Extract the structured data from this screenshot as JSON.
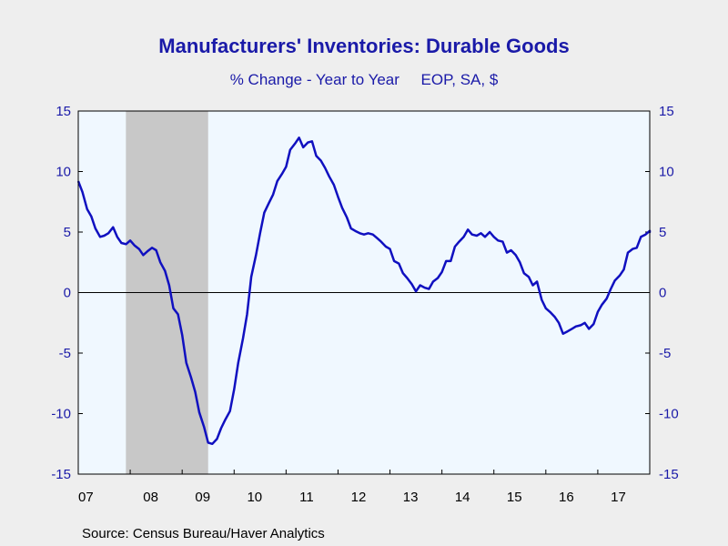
{
  "chart_data": {
    "type": "line",
    "title": "Manufacturers' Inventories: Durable Goods",
    "subtitle": "% Change - Year to Year     EOP, SA, $",
    "ylim": [
      -15,
      15
    ],
    "yticks": [
      15,
      10,
      5,
      0,
      -5,
      -10,
      -15
    ],
    "xlim": [
      2007.0,
      2018.0
    ],
    "x_tick_labels": [
      "07",
      "08",
      "09",
      "10",
      "11",
      "12",
      "13",
      "14",
      "15",
      "16",
      "17"
    ],
    "grid": false,
    "recession_band": [
      2007.917,
      2009.5
    ],
    "zero_line": true,
    "series": [
      {
        "color": "#1010c0",
        "points": [
          [
            2007.0,
            9.2
          ],
          [
            2007.08,
            8.3
          ],
          [
            2007.17,
            6.9
          ],
          [
            2007.25,
            6.3
          ],
          [
            2007.33,
            5.3
          ],
          [
            2007.42,
            4.6
          ],
          [
            2007.5,
            4.7
          ],
          [
            2007.58,
            4.9
          ],
          [
            2007.67,
            5.4
          ],
          [
            2007.75,
            4.6
          ],
          [
            2007.83,
            4.1
          ],
          [
            2007.92,
            4.0
          ],
          [
            2008.0,
            4.3
          ],
          [
            2008.08,
            3.9
          ],
          [
            2008.17,
            3.6
          ],
          [
            2008.25,
            3.1
          ],
          [
            2008.33,
            3.4
          ],
          [
            2008.42,
            3.7
          ],
          [
            2008.5,
            3.5
          ],
          [
            2008.58,
            2.5
          ],
          [
            2008.67,
            1.8
          ],
          [
            2008.75,
            0.6
          ],
          [
            2008.83,
            -1.3
          ],
          [
            2008.92,
            -1.8
          ],
          [
            2009.0,
            -3.5
          ],
          [
            2009.08,
            -5.8
          ],
          [
            2009.17,
            -7.0
          ],
          [
            2009.25,
            -8.2
          ],
          [
            2009.33,
            -9.9
          ],
          [
            2009.42,
            -11.1
          ],
          [
            2009.5,
            -12.4
          ],
          [
            2009.58,
            -12.5
          ],
          [
            2009.67,
            -12.1
          ],
          [
            2009.75,
            -11.2
          ],
          [
            2009.83,
            -10.5
          ],
          [
            2009.92,
            -9.8
          ],
          [
            2010.0,
            -8.0
          ],
          [
            2010.08,
            -5.8
          ],
          [
            2010.17,
            -3.8
          ],
          [
            2010.25,
            -1.8
          ],
          [
            2010.33,
            1.3
          ],
          [
            2010.42,
            3.1
          ],
          [
            2010.5,
            4.9
          ],
          [
            2010.58,
            6.6
          ],
          [
            2010.67,
            7.4
          ],
          [
            2010.75,
            8.1
          ],
          [
            2010.83,
            9.2
          ],
          [
            2010.92,
            9.8
          ],
          [
            2011.0,
            10.4
          ],
          [
            2011.08,
            11.8
          ],
          [
            2011.17,
            12.3
          ],
          [
            2011.25,
            12.8
          ],
          [
            2011.33,
            12.0
          ],
          [
            2011.42,
            12.4
          ],
          [
            2011.5,
            12.5
          ],
          [
            2011.58,
            11.3
          ],
          [
            2011.67,
            10.9
          ],
          [
            2011.75,
            10.3
          ],
          [
            2011.83,
            9.6
          ],
          [
            2011.92,
            8.9
          ],
          [
            2012.0,
            7.9
          ],
          [
            2012.08,
            7.0
          ],
          [
            2012.17,
            6.2
          ],
          [
            2012.25,
            5.3
          ],
          [
            2012.33,
            5.1
          ],
          [
            2012.42,
            4.9
          ],
          [
            2012.5,
            4.8
          ],
          [
            2012.58,
            4.9
          ],
          [
            2012.67,
            4.8
          ],
          [
            2012.75,
            4.5
          ],
          [
            2012.83,
            4.2
          ],
          [
            2012.92,
            3.8
          ],
          [
            2013.0,
            3.6
          ],
          [
            2013.08,
            2.6
          ],
          [
            2013.17,
            2.4
          ],
          [
            2013.25,
            1.6
          ],
          [
            2013.33,
            1.2
          ],
          [
            2013.42,
            0.7
          ],
          [
            2013.5,
            0.1
          ],
          [
            2013.58,
            0.6
          ],
          [
            2013.67,
            0.4
          ],
          [
            2013.75,
            0.3
          ],
          [
            2013.83,
            0.9
          ],
          [
            2013.92,
            1.2
          ],
          [
            2014.0,
            1.7
          ],
          [
            2014.08,
            2.6
          ],
          [
            2014.17,
            2.6
          ],
          [
            2014.25,
            3.8
          ],
          [
            2014.33,
            4.2
          ],
          [
            2014.42,
            4.6
          ],
          [
            2014.5,
            5.2
          ],
          [
            2014.58,
            4.8
          ],
          [
            2014.67,
            4.7
          ],
          [
            2014.75,
            4.9
          ],
          [
            2014.83,
            4.6
          ],
          [
            2014.92,
            5.0
          ],
          [
            2015.0,
            4.6
          ],
          [
            2015.08,
            4.3
          ],
          [
            2015.17,
            4.2
          ],
          [
            2015.25,
            3.3
          ],
          [
            2015.33,
            3.5
          ],
          [
            2015.42,
            3.1
          ],
          [
            2015.5,
            2.5
          ],
          [
            2015.58,
            1.6
          ],
          [
            2015.67,
            1.3
          ],
          [
            2015.75,
            0.6
          ],
          [
            2015.83,
            0.9
          ],
          [
            2015.92,
            -0.6
          ],
          [
            2016.0,
            -1.3
          ],
          [
            2016.08,
            -1.6
          ],
          [
            2016.17,
            -2.0
          ],
          [
            2016.25,
            -2.5
          ],
          [
            2016.33,
            -3.4
          ],
          [
            2016.42,
            -3.2
          ],
          [
            2016.5,
            -3.0
          ],
          [
            2016.58,
            -2.8
          ],
          [
            2016.67,
            -2.7
          ],
          [
            2016.75,
            -2.5
          ],
          [
            2016.83,
            -3.0
          ],
          [
            2016.92,
            -2.6
          ],
          [
            2017.0,
            -1.6
          ],
          [
            2017.08,
            -1.0
          ],
          [
            2017.17,
            -0.5
          ],
          [
            2017.25,
            0.3
          ],
          [
            2017.33,
            1.0
          ],
          [
            2017.42,
            1.4
          ],
          [
            2017.5,
            1.9
          ],
          [
            2017.58,
            3.3
          ],
          [
            2017.67,
            3.6
          ],
          [
            2017.75,
            3.7
          ],
          [
            2017.83,
            4.6
          ],
          [
            2017.92,
            4.8
          ],
          [
            2018.0,
            5.1
          ],
          [
            2018.08,
            5.0
          ],
          [
            2018.17,
            5.0
          ],
          [
            2018.25,
            5.1
          ]
        ]
      }
    ]
  },
  "source": "Source:  Census Bureau/Haver Analytics",
  "colors": {
    "background": "#eeeeee",
    "plot_background": "#f0f8ff",
    "recession": "#c8c8c8",
    "axis_text": "#1a1aa8",
    "line": "#1010c0"
  }
}
